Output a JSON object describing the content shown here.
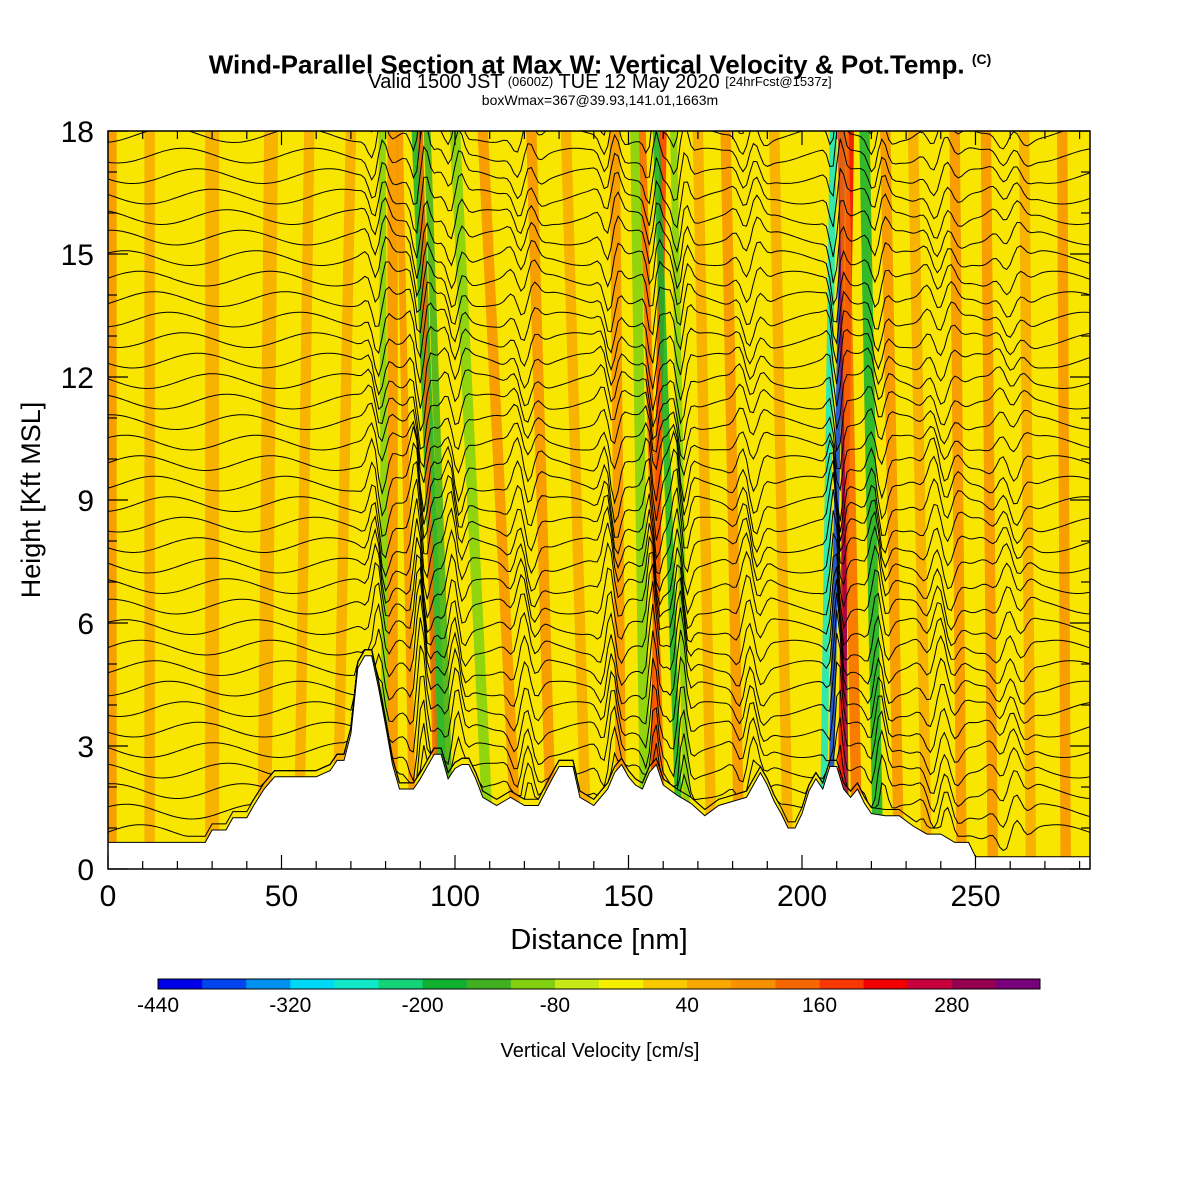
{
  "header": {
    "title": "Wind-Parallel Section at Max W: Vertical Velocity & Pot.Temp.",
    "copyright": "(C)",
    "valid_prefix": "Valid 1500 JST",
    "valid_utc": "(0600Z)",
    "valid_date": "TUE 12 May 2020",
    "forecast": "[24hrFcst@1537z]",
    "box_info": "boxWmax=367@39.93,141.01,1663m"
  },
  "chart_data": {
    "type": "heatmap",
    "xlabel": "Distance [nm]",
    "ylabel": "Height [Kft MSL]",
    "xlim": [
      0,
      283
    ],
    "ylim": [
      0,
      18
    ],
    "x_ticks": [
      0,
      50,
      100,
      150,
      200,
      250
    ],
    "y_ticks": [
      0,
      3,
      6,
      9,
      12,
      15,
      18
    ],
    "colorbar": {
      "label": "Vertical Velocity [cm/s]",
      "range": [
        -440,
        360
      ],
      "tick_labels": [
        "-440",
        "-320",
        "-200",
        "-80",
        "40",
        "160",
        "280"
      ],
      "colors": [
        "#0000e6",
        "#0044f0",
        "#0090f0",
        "#00d8f8",
        "#10e8c8",
        "#14d278",
        "#10b030",
        "#40b020",
        "#80d010",
        "#c8e818",
        "#f8f000",
        "#f8c800",
        "#f8a800",
        "#f89000",
        "#f86800",
        "#f83800",
        "#f00000",
        "#c8003c",
        "#960050",
        "#780078"
      ]
    },
    "terrain_kft": [
      [
        0,
        0.65
      ],
      [
        10,
        0.65
      ],
      [
        20,
        0.65
      ],
      [
        28,
        0.65
      ],
      [
        30,
        0.95
      ],
      [
        34,
        0.95
      ],
      [
        36,
        1.25
      ],
      [
        40,
        1.25
      ],
      [
        42,
        1.55
      ],
      [
        45,
        1.95
      ],
      [
        48,
        2.25
      ],
      [
        52,
        2.25
      ],
      [
        56,
        2.25
      ],
      [
        60,
        2.25
      ],
      [
        64,
        2.4
      ],
      [
        66,
        2.65
      ],
      [
        68,
        2.65
      ],
      [
        70,
        3.3
      ],
      [
        72,
        4.9
      ],
      [
        74,
        5.2
      ],
      [
        76,
        5.2
      ],
      [
        78,
        4.4
      ],
      [
        80,
        3.5
      ],
      [
        82,
        2.55
      ],
      [
        84,
        1.95
      ],
      [
        88,
        1.95
      ],
      [
        90,
        2.2
      ],
      [
        92,
        2.5
      ],
      [
        94,
        2.8
      ],
      [
        96,
        2.8
      ],
      [
        98,
        2.2
      ],
      [
        100,
        2.45
      ],
      [
        102,
        2.55
      ],
      [
        104,
        2.55
      ],
      [
        106,
        2.2
      ],
      [
        108,
        1.75
      ],
      [
        112,
        1.55
      ],
      [
        116,
        1.75
      ],
      [
        120,
        1.55
      ],
      [
        124,
        1.55
      ],
      [
        128,
        2.2
      ],
      [
        130,
        2.5
      ],
      [
        134,
        2.5
      ],
      [
        136,
        1.75
      ],
      [
        140,
        1.55
      ],
      [
        144,
        1.95
      ],
      [
        146,
        2.35
      ],
      [
        148,
        2.55
      ],
      [
        150,
        2.25
      ],
      [
        152,
        2.05
      ],
      [
        154,
        1.95
      ],
      [
        156,
        2.35
      ],
      [
        158,
        2.55
      ],
      [
        160,
        2.05
      ],
      [
        164,
        1.8
      ],
      [
        168,
        1.6
      ],
      [
        172,
        1.3
      ],
      [
        176,
        1.55
      ],
      [
        180,
        1.65
      ],
      [
        184,
        1.75
      ],
      [
        186,
        2.05
      ],
      [
        188,
        2.35
      ],
      [
        190,
        2.05
      ],
      [
        192,
        1.65
      ],
      [
        194,
        1.35
      ],
      [
        196,
        1.0
      ],
      [
        198,
        1.0
      ],
      [
        200,
        1.35
      ],
      [
        202,
        1.9
      ],
      [
        204,
        2.2
      ],
      [
        206,
        1.95
      ],
      [
        208,
        2.5
      ],
      [
        210,
        2.5
      ],
      [
        212,
        1.95
      ],
      [
        214,
        1.75
      ],
      [
        216,
        1.95
      ],
      [
        218,
        1.6
      ],
      [
        220,
        1.35
      ],
      [
        224,
        1.3
      ],
      [
        228,
        1.3
      ],
      [
        232,
        1.05
      ],
      [
        236,
        0.85
      ],
      [
        240,
        0.85
      ],
      [
        244,
        0.65
      ],
      [
        248,
        0.65
      ],
      [
        250,
        0.3
      ],
      [
        256,
        0.3
      ],
      [
        264,
        0.3
      ],
      [
        283,
        0.3
      ]
    ],
    "theta_field": "Potential temperature isentropes (black contours) overlaid on vertical velocity shading; strong updraft/downdraft couplets near 90, 157, 165 and 210 nm."
  }
}
